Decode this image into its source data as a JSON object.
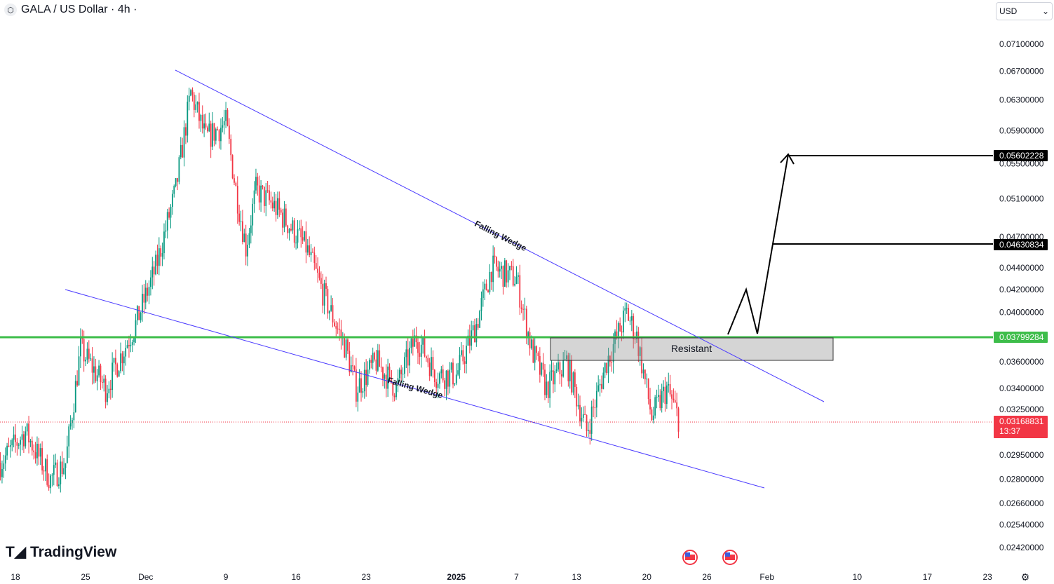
{
  "header": {
    "symbol_title": "GALA / US Dollar · 4h ·",
    "currency": "USD"
  },
  "logo": "TradingView",
  "colors": {
    "up": "#089981",
    "down": "#f23645",
    "wedge": "#4b3bff",
    "support": "#3dbd4a",
    "current": "#f23645"
  },
  "chart_data": {
    "type": "candlestick",
    "scale": "log",
    "ylim": [
      0.0234,
      0.0745
    ],
    "y_ticks": [
      "0.07100000",
      "0.06700000",
      "0.06300000",
      "0.05900000",
      "0.05500000",
      "0.05100000",
      "0.04700000",
      "0.04400000",
      "0.04200000",
      "0.04000000",
      "0.03600000",
      "0.03400000",
      "0.03250000",
      "0.02950000",
      "0.02800000",
      "0.02660000",
      "0.02540000",
      "0.02420000"
    ],
    "x_ticks": [
      {
        "label": "18",
        "day": 0
      },
      {
        "label": "25",
        "day": 7
      },
      {
        "label": "Dec",
        "day": 13
      },
      {
        "label": "9",
        "day": 21
      },
      {
        "label": "16",
        "day": 28
      },
      {
        "label": "23",
        "day": 35
      },
      {
        "label": "2025",
        "day": 44
      },
      {
        "label": "7",
        "day": 50
      },
      {
        "label": "13",
        "day": 56
      },
      {
        "label": "20",
        "day": 63
      },
      {
        "label": "26",
        "day": 69
      },
      {
        "label": "Feb",
        "day": 75
      },
      {
        "label": "10",
        "day": 84
      },
      {
        "label": "17",
        "day": 91
      },
      {
        "label": "23",
        "day": 97
      }
    ],
    "price_path": [
      [
        -1.5,
        0.029
      ],
      [
        1,
        0.031
      ],
      [
        3.5,
        0.028
      ],
      [
        5,
        0.029
      ],
      [
        6.5,
        0.037
      ],
      [
        9,
        0.034
      ],
      [
        12,
        0.039
      ],
      [
        14,
        0.044
      ],
      [
        16,
        0.052
      ],
      [
        17.5,
        0.064
      ],
      [
        19,
        0.058
      ],
      [
        21,
        0.06
      ],
      [
        22,
        0.052
      ],
      [
        23,
        0.046
      ],
      [
        24,
        0.052
      ],
      [
        26,
        0.05
      ],
      [
        29,
        0.046
      ],
      [
        31,
        0.041
      ],
      [
        33,
        0.037
      ],
      [
        34,
        0.034
      ],
      [
        36,
        0.036
      ],
      [
        38,
        0.034
      ],
      [
        40,
        0.038
      ],
      [
        42,
        0.035
      ],
      [
        44,
        0.035
      ],
      [
        46,
        0.039
      ],
      [
        47.5,
        0.044
      ],
      [
        50,
        0.043
      ],
      [
        51.5,
        0.037
      ],
      [
        53,
        0.034
      ],
      [
        55,
        0.036
      ],
      [
        57,
        0.031
      ],
      [
        59,
        0.036
      ],
      [
        61,
        0.04
      ],
      [
        62,
        0.038
      ],
      [
        63.5,
        0.032
      ],
      [
        65,
        0.034
      ],
      [
        66.3,
        0.03169
      ]
    ],
    "annotations": {
      "upper_wedge_label": "Falling Wedge",
      "lower_wedge_label": "Falling Wedge",
      "zone_label": "Resistant"
    },
    "levels": {
      "support": "0.03799284",
      "target1": "0.04630834",
      "target2": "0.05602228",
      "current": "0.03168831",
      "countdown": "13:37"
    }
  }
}
